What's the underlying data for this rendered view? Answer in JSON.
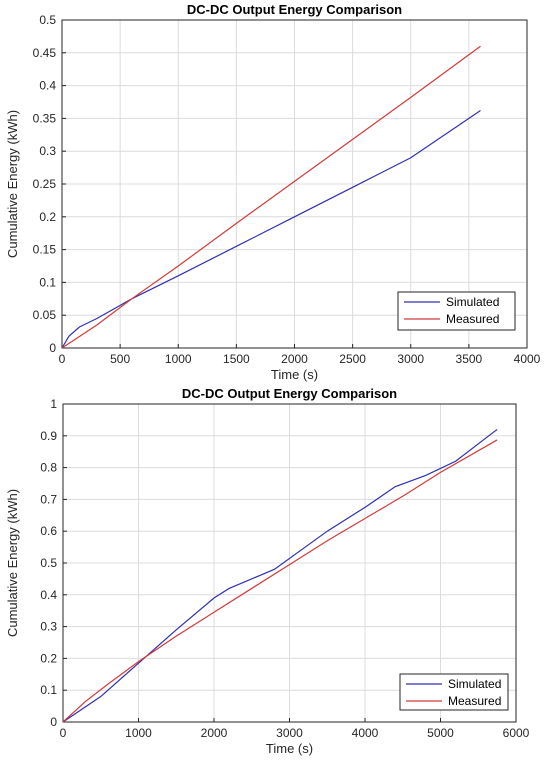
{
  "colors": {
    "simulated": "#3030b0",
    "measured": "#d23a3a",
    "grid": "#dcdcdc",
    "axis": "#262626"
  },
  "chart_data": [
    {
      "type": "line",
      "title": "DC-DC Output Energy Comparison",
      "xlabel": "Time (s)",
      "ylabel": "Cumulative Energy (kWh)",
      "xlim": [
        0,
        4000
      ],
      "ylim": [
        0,
        0.5
      ],
      "xticks": [
        0,
        500,
        1000,
        1500,
        2000,
        2500,
        3000,
        3500,
        4000
      ],
      "yticks": [
        0,
        0.05,
        0.1,
        0.15,
        0.2,
        0.25,
        0.3,
        0.35,
        0.4,
        0.45,
        0.5
      ],
      "grid": true,
      "legend_position": "bottom-right",
      "series": [
        {
          "name": "Simulated",
          "x": [
            0,
            60,
            150,
            300,
            600,
            1000,
            1500,
            2000,
            2500,
            3000,
            3600
          ],
          "y": [
            0,
            0.018,
            0.032,
            0.045,
            0.075,
            0.11,
            0.155,
            0.2,
            0.245,
            0.29,
            0.362
          ]
        },
        {
          "name": "Measured",
          "x": [
            0,
            300,
            600,
            1000,
            1500,
            2000,
            2500,
            3000,
            3600
          ],
          "y": [
            0,
            0.035,
            0.075,
            0.125,
            0.19,
            0.254,
            0.318,
            0.382,
            0.46
          ]
        }
      ]
    },
    {
      "type": "line",
      "title": "DC-DC Output Energy Comparison",
      "xlabel": "Time (s)",
      "ylabel": "Cumulative Energy (kWh)",
      "xlim": [
        0,
        6000
      ],
      "ylim": [
        0,
        1
      ],
      "xticks": [
        0,
        1000,
        2000,
        3000,
        4000,
        5000,
        6000
      ],
      "yticks": [
        0,
        0.1,
        0.2,
        0.3,
        0.4,
        0.5,
        0.6,
        0.7,
        0.8,
        0.9,
        1
      ],
      "grid": true,
      "legend_position": "bottom-right",
      "series": [
        {
          "name": "Simulated",
          "x": [
            0,
            500,
            1000,
            1500,
            2000,
            2200,
            2400,
            2800,
            3500,
            4000,
            4400,
            4800,
            5200,
            5750
          ],
          "y": [
            0,
            0.08,
            0.185,
            0.29,
            0.39,
            0.42,
            0.44,
            0.48,
            0.6,
            0.675,
            0.74,
            0.775,
            0.82,
            0.92
          ]
        },
        {
          "name": "Measured",
          "x": [
            0,
            300,
            600,
            1000,
            1500,
            2000,
            2500,
            3000,
            3500,
            4000,
            4500,
            5000,
            5750
          ],
          "y": [
            0,
            0.065,
            0.12,
            0.19,
            0.27,
            0.345,
            0.42,
            0.495,
            0.57,
            0.64,
            0.71,
            0.785,
            0.887
          ]
        }
      ]
    }
  ]
}
